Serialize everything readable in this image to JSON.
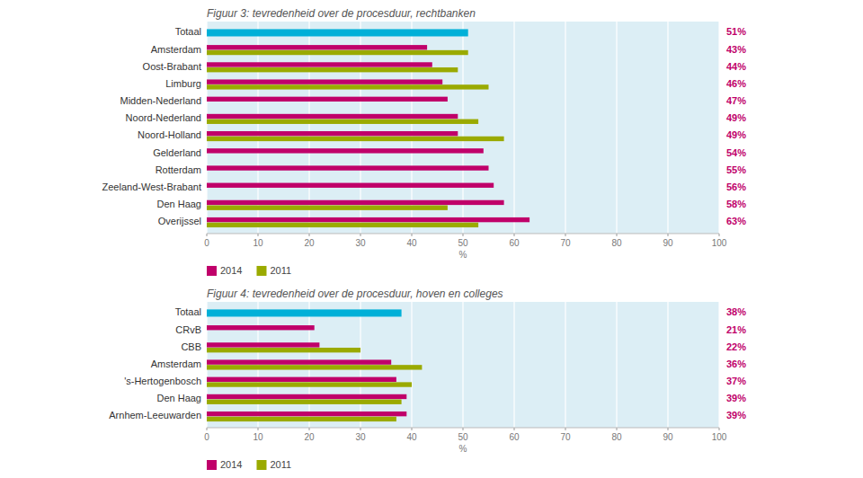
{
  "chart_data": [
    {
      "type": "bar",
      "orientation": "horizontal",
      "title": "Figuur 3: tevredenheid over de procesduur, rechtbanken",
      "x_label": "%",
      "categories": [
        "Totaal",
        "Amsterdam",
        "Oost-Brabant",
        "Limburg",
        "Midden-Nederland",
        "Noord-Nederland",
        "Noord-Holland",
        "Gelderland",
        "Rotterdam",
        "Zeeland-West-Brabant",
        "Den Haag",
        "Overijssel"
      ],
      "series": [
        {
          "name": "2014",
          "color": "#c0006a",
          "colors": [
            "#00b0d8",
            "#c0006a",
            "#c0006a",
            "#c0006a",
            "#c0006a",
            "#c0006a",
            "#c0006a",
            "#c0006a",
            "#c0006a",
            "#c0006a",
            "#c0006a",
            "#c0006a"
          ],
          "values": [
            51,
            43,
            44,
            46,
            47,
            49,
            49,
            54,
            55,
            56,
            58,
            63
          ],
          "value_labels": [
            "51%",
            "43%",
            "44%",
            "46%",
            "47%",
            "49%",
            "49%",
            "54%",
            "55%",
            "56%",
            "58%",
            "63%"
          ]
        },
        {
          "name": "2011",
          "color": "#9aaa00",
          "values": [
            null,
            51,
            49,
            55,
            null,
            53,
            58,
            null,
            null,
            null,
            47,
            53
          ]
        }
      ],
      "xlim": [
        0,
        100
      ],
      "xticks": [
        0,
        10,
        20,
        30,
        40,
        50,
        60,
        70,
        80,
        90,
        100
      ],
      "grid": true,
      "data_labels": true,
      "legend": "bottom"
    },
    {
      "type": "bar",
      "orientation": "horizontal",
      "title": "Figuur 4: tevredenheid over de procesduur, hoven en colleges",
      "x_label": "%",
      "categories": [
        "Totaal",
        "CRvB",
        "CBB",
        "Amsterdam",
        "'s-Hertogenbosch",
        "Den Haag",
        "Arnhem-Leeuwarden"
      ],
      "series": [
        {
          "name": "2014",
          "color": "#c0006a",
          "colors": [
            "#00b0d8",
            "#c0006a",
            "#c0006a",
            "#c0006a",
            "#c0006a",
            "#c0006a",
            "#c0006a"
          ],
          "values": [
            38,
            21,
            22,
            36,
            37,
            39,
            39
          ],
          "value_labels": [
            "38%",
            "21%",
            "22%",
            "36%",
            "37%",
            "39%",
            "39%"
          ]
        },
        {
          "name": "2011",
          "color": "#9aaa00",
          "values": [
            null,
            null,
            30,
            42,
            40,
            38,
            37
          ]
        }
      ],
      "xlim": [
        0,
        100
      ],
      "xticks": [
        0,
        10,
        20,
        30,
        40,
        50,
        60,
        70,
        80,
        90,
        100
      ],
      "grid": true,
      "data_labels": true,
      "legend": "bottom"
    }
  ]
}
